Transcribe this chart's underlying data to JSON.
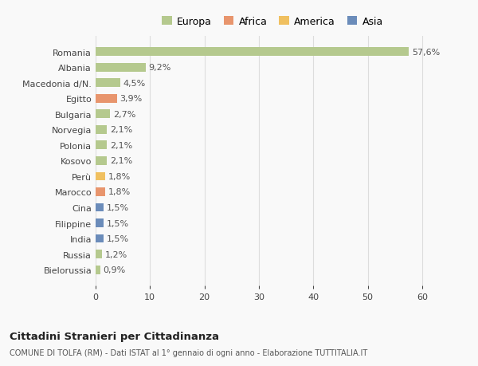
{
  "categories": [
    "Bielorussia",
    "Russia",
    "India",
    "Filippine",
    "Cina",
    "Marocco",
    "Perù",
    "Kosovo",
    "Polonia",
    "Norvegia",
    "Bulgaria",
    "Egitto",
    "Macedonia d/N.",
    "Albania",
    "Romania"
  ],
  "values": [
    0.9,
    1.2,
    1.5,
    1.5,
    1.5,
    1.8,
    1.8,
    2.1,
    2.1,
    2.1,
    2.7,
    3.9,
    4.5,
    9.2,
    57.6
  ],
  "labels": [
    "0,9%",
    "1,2%",
    "1,5%",
    "1,5%",
    "1,5%",
    "1,8%",
    "1,8%",
    "2,1%",
    "2,1%",
    "2,1%",
    "2,7%",
    "3,9%",
    "4,5%",
    "9,2%",
    "57,6%"
  ],
  "colors": [
    "#b5c98e",
    "#b5c98e",
    "#6b8cba",
    "#6b8cba",
    "#6b8cba",
    "#e8956d",
    "#f0c060",
    "#b5c98e",
    "#b5c98e",
    "#b5c98e",
    "#b5c98e",
    "#e8956d",
    "#b5c98e",
    "#b5c98e",
    "#b5c98e"
  ],
  "legend": [
    {
      "label": "Europa",
      "color": "#b5c98e"
    },
    {
      "label": "Africa",
      "color": "#e8956d"
    },
    {
      "label": "America",
      "color": "#f0c060"
    },
    {
      "label": "Asia",
      "color": "#6b8cba"
    }
  ],
  "title": "Cittadini Stranieri per Cittadinanza",
  "subtitle": "COMUNE DI TOLFA (RM) - Dati ISTAT al 1° gennaio di ogni anno - Elaborazione TUTTITALIA.IT",
  "xlim": [
    0,
    65
  ],
  "xticks": [
    0,
    10,
    20,
    30,
    40,
    50,
    60
  ],
  "background_color": "#f9f9f9",
  "bar_height": 0.55,
  "grid_color": "#dddddd",
  "label_fontsize": 8,
  "tick_fontsize": 8,
  "legend_fontsize": 9
}
